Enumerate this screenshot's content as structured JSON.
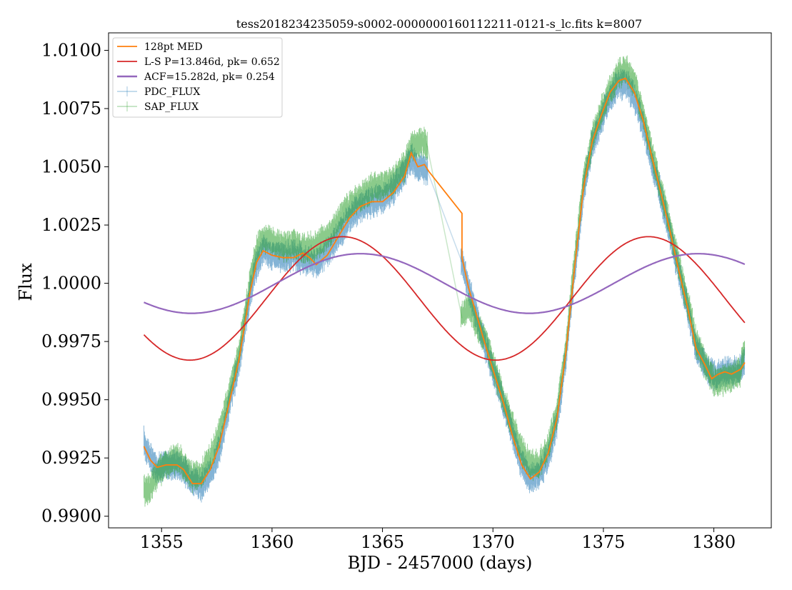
{
  "chart_data": {
    "type": "line",
    "title": "tess2018234235059-s0002-0000000160112211-0121-s_lc.fits k=8007",
    "xlabel": "BJD - 2457000 (days)",
    "ylabel": "Flux",
    "xlim": [
      1352.6,
      1382.6
    ],
    "ylim": [
      0.9895,
      1.01075
    ],
    "xticks": [
      1355,
      1360,
      1365,
      1370,
      1375,
      1380
    ],
    "xtick_labels": [
      "1355",
      "1360",
      "1365",
      "1370",
      "1375",
      "1380"
    ],
    "yticks": [
      0.99,
      0.9925,
      0.995,
      0.9975,
      1.0,
      1.0025,
      1.005,
      1.0075,
      1.01
    ],
    "ytick_labels": [
      "0.9900",
      "0.9925",
      "0.9950",
      "0.9975",
      "1.0000",
      "1.0025",
      "1.0050",
      "1.0075",
      "1.0100"
    ],
    "grid": false,
    "legend_position": "top-left",
    "legend": [
      {
        "label": "128pt MED",
        "color": "#ff7f0e",
        "style": "line"
      },
      {
        "label": "L-S P=13.846d, pk= 0.652",
        "color": "#d62728",
        "style": "line"
      },
      {
        "label": "ACF=15.282d, pk= 0.254",
        "color": "#9467bd",
        "style": "line-thick"
      },
      {
        "label": "PDC_FLUX",
        "color": "#1f77b4",
        "style": "errorbar"
      },
      {
        "label": "SAP_FLUX",
        "color": "#2ca02c",
        "style": "errorbar"
      }
    ],
    "series": [
      {
        "name": "PDC_FLUX",
        "color": "#1f77b4",
        "x": [
          1354.2,
          1354.5,
          1354.8,
          1355.2,
          1355.7,
          1356.0,
          1356.4,
          1356.8,
          1357.2,
          1357.6,
          1358.0,
          1358.5,
          1359.0,
          1359.3,
          1359.6,
          1360.0,
          1360.5,
          1361.0,
          1361.5,
          1362.0,
          1362.5,
          1363.0,
          1363.5,
          1364.0,
          1364.5,
          1365.0,
          1365.5,
          1366.0,
          1366.3,
          1366.6,
          1367.0,
          1368.6,
          1368.9,
          1369.3,
          1369.7,
          1370.1,
          1370.5,
          1370.9,
          1371.3,
          1371.7,
          1372.1,
          1372.5,
          1372.9,
          1373.3,
          1373.7,
          1374.1,
          1374.5,
          1374.9,
          1375.3,
          1375.7,
          1376.0,
          1376.4,
          1376.8,
          1377.2,
          1377.6,
          1378.0,
          1378.4,
          1378.8,
          1379.2,
          1379.6,
          1380.0,
          1380.4,
          1380.8,
          1381.2,
          1381.4
        ],
        "y": [
          0.9932,
          0.9925,
          0.9921,
          0.9922,
          0.9922,
          0.992,
          0.9915,
          0.9913,
          0.9918,
          0.9928,
          0.9945,
          0.9966,
          0.9995,
          1.0008,
          1.0014,
          1.0012,
          1.0011,
          1.0012,
          1.001,
          1.0009,
          1.0013,
          1.002,
          1.0028,
          1.0033,
          1.0035,
          1.0036,
          1.004,
          1.0048,
          1.0054,
          1.005,
          1.0049,
          1.0009,
          0.9998,
          0.9985,
          0.9972,
          0.996,
          0.9948,
          0.9935,
          0.9922,
          0.9916,
          0.9918,
          0.9925,
          0.994,
          0.9968,
          1.0005,
          1.004,
          1.006,
          1.007,
          1.008,
          1.0085,
          1.0086,
          1.008,
          1.0068,
          1.0052,
          1.0038,
          1.0022,
          1.0005,
          0.999,
          0.9972,
          0.9965,
          0.996,
          0.9962,
          0.9962,
          0.9963,
          0.9968
        ]
      },
      {
        "name": "SAP_FLUX",
        "color": "#2ca02c",
        "x": [
          1354.2,
          1354.5,
          1354.8,
          1355.2,
          1355.7,
          1356.0,
          1356.4,
          1356.8,
          1357.2,
          1357.6,
          1358.0,
          1358.5,
          1359.0,
          1359.3,
          1359.6,
          1360.0,
          1360.5,
          1361.0,
          1361.5,
          1362.0,
          1362.5,
          1363.0,
          1363.5,
          1364.0,
          1364.5,
          1365.0,
          1365.5,
          1366.0,
          1366.3,
          1366.6,
          1367.0,
          1368.6,
          1368.9,
          1369.3,
          1369.7,
          1370.1,
          1370.5,
          1370.9,
          1371.3,
          1371.7,
          1372.1,
          1372.5,
          1372.9,
          1373.3,
          1373.7,
          1374.1,
          1374.5,
          1374.9,
          1375.3,
          1375.7,
          1376.0,
          1376.4,
          1376.8,
          1377.2,
          1377.6,
          1378.0,
          1378.4,
          1378.8,
          1379.2,
          1379.6,
          1380.0,
          1380.4,
          1380.8,
          1381.2,
          1381.4
        ],
        "y": [
          0.9911,
          0.9912,
          0.9918,
          0.9922,
          0.9925,
          0.9922,
          0.9917,
          0.9918,
          0.9925,
          0.9935,
          0.995,
          0.997,
          1.0,
          1.0014,
          1.002,
          1.0018,
          1.0016,
          1.0016,
          1.0015,
          1.0016,
          1.002,
          1.0027,
          1.0033,
          1.0037,
          1.0041,
          1.0042,
          1.0044,
          1.005,
          1.0058,
          1.006,
          1.006,
          0.9985,
          0.999,
          0.9982,
          0.9975,
          0.9962,
          0.995,
          0.9938,
          0.9928,
          0.9922,
          0.9922,
          0.993,
          0.9945,
          0.9972,
          1.001,
          1.0044,
          1.0062,
          1.0074,
          1.0083,
          1.009,
          1.0092,
          1.0086,
          1.0072,
          1.0056,
          1.004,
          1.0025,
          1.0008,
          0.9992,
          0.9975,
          0.9965,
          0.9958,
          0.9958,
          0.996,
          0.9962,
          0.9972
        ]
      },
      {
        "name": "128pt MED",
        "color": "#ff7f0e",
        "x": [
          1354.2,
          1354.5,
          1354.8,
          1355.2,
          1355.7,
          1356.0,
          1356.4,
          1356.8,
          1357.2,
          1357.6,
          1358.0,
          1358.5,
          1359.0,
          1359.3,
          1359.6,
          1360.0,
          1360.5,
          1361.0,
          1361.4,
          1361.7,
          1362.0,
          1362.5,
          1363.0,
          1363.5,
          1364.0,
          1364.5,
          1365.0,
          1365.5,
          1366.0,
          1366.3,
          1366.6,
          1366.9,
          1367.1,
          1368.6,
          1368.6,
          1368.9,
          1369.3,
          1369.7,
          1370.1,
          1370.5,
          1370.9,
          1371.3,
          1371.7,
          1372.1,
          1372.5,
          1372.9,
          1373.3,
          1373.7,
          1374.1,
          1374.5,
          1374.9,
          1375.3,
          1375.7,
          1376.0,
          1376.4,
          1376.8,
          1377.2,
          1377.6,
          1378.0,
          1378.4,
          1378.8,
          1379.2,
          1379.6,
          1379.9,
          1380.2,
          1380.5,
          1380.8,
          1381.2,
          1381.4
        ],
        "y": [
          0.993,
          0.9924,
          0.9921,
          0.9922,
          0.9922,
          0.992,
          0.9914,
          0.9914,
          0.992,
          0.993,
          0.9946,
          0.9967,
          0.9996,
          1.0009,
          1.0014,
          1.0012,
          1.0011,
          1.0011,
          1.0013,
          1.0011,
          1.0008,
          1.0012,
          1.002,
          1.0028,
          1.0033,
          1.0035,
          1.0035,
          1.0039,
          1.0046,
          1.0056,
          1.005,
          1.0051,
          1.0048,
          1.003,
          1.0011,
          0.9998,
          0.9985,
          0.9972,
          0.996,
          0.9948,
          0.9934,
          0.9922,
          0.9916,
          0.9919,
          0.9927,
          0.9942,
          0.997,
          1.0007,
          1.0041,
          1.0061,
          1.0072,
          1.0082,
          1.0087,
          1.0088,
          1.0082,
          1.007,
          1.0054,
          1.0039,
          1.0023,
          1.0006,
          0.999,
          0.9972,
          0.9965,
          0.9959,
          0.9961,
          0.9962,
          0.9961,
          0.9963,
          0.9966
        ]
      },
      {
        "name": "L-S P=13.846d, pk= 0.652",
        "color": "#d62728",
        "model": "sine",
        "period": 13.846,
        "mean": 0.99935,
        "amplitude": 0.00265,
        "peak_x": 1363.2,
        "xrange": [
          1354.2,
          1381.4
        ]
      },
      {
        "name": "ACF=15.282d, pk= 0.254",
        "color": "#9467bd",
        "model": "sine",
        "period": 15.282,
        "mean": 0.99999,
        "amplitude": 0.00128,
        "peak_x": 1364.0,
        "xrange": [
          1354.2,
          1381.4
        ]
      }
    ]
  }
}
